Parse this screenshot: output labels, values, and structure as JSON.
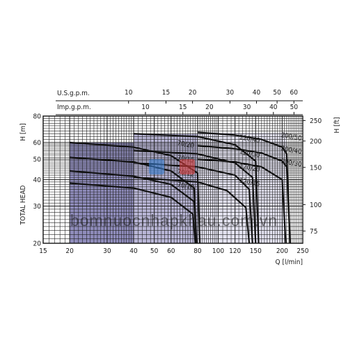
{
  "chart_data": {
    "type": "line",
    "xlabel": "Q [l/min]",
    "ylabel_left": "H [m]",
    "ylabel_left_side": "TOTAL HEAD",
    "ylabel_right": "H [ft]",
    "x_scale": "log",
    "y_scale": "log",
    "xlim": [
      15,
      250
    ],
    "ylim": [
      20,
      80
    ],
    "x_ticks": [
      15,
      20,
      30,
      40,
      50,
      60,
      80,
      100,
      120,
      150,
      200,
      250
    ],
    "y_ticks_left": [
      20,
      30,
      40,
      50,
      60,
      80
    ],
    "y_ticks_right": [
      75,
      100,
      150,
      200,
      250
    ],
    "top_axes": [
      {
        "label": "U.S.g.p.m.",
        "ticks": [
          10,
          15,
          20,
          30,
          40,
          50,
          60
        ]
      },
      {
        "label": "Imp.g.p.m.",
        "ticks": [
          10,
          15,
          20,
          30,
          40,
          50
        ]
      }
    ],
    "grid": true,
    "series": [
      {
        "name": "70/20",
        "x": [
          20,
          40,
          60,
          80
        ],
        "y": [
          60,
          57,
          52,
          43
        ]
      },
      {
        "name": "70/15",
        "x": [
          20,
          40,
          60,
          77
        ],
        "y": [
          51,
          48.5,
          44,
          36.5
        ]
      },
      {
        "name": "70/12",
        "x": [
          20,
          40,
          60,
          77
        ],
        "y": [
          44,
          41.5,
          38,
          31.5
        ]
      },
      {
        "name": "70/10",
        "x": [
          20,
          40,
          60,
          76
        ],
        "y": [
          38.5,
          36.5,
          33,
          27.5
        ]
      },
      {
        "name": "120/40",
        "x": [
          40,
          80,
          120,
          150
        ],
        "y": [
          66,
          64,
          58.5,
          49
        ]
      },
      {
        "name": "120/30",
        "x": [
          40,
          80,
          120,
          145
        ],
        "y": [
          55,
          53,
          48,
          41
        ]
      },
      {
        "name": "120/20",
        "x": [
          40,
          80,
          120,
          140
        ],
        "y": [
          48,
          46,
          42,
          36
        ]
      },
      {
        "name": "120/15",
        "x": [
          40,
          80,
          110,
          135
        ],
        "y": [
          41,
          39,
          35.5,
          29.5
        ]
      },
      {
        "name": "200/50",
        "x": [
          80,
          120,
          160,
          200,
          210
        ],
        "y": [
          67,
          65,
          62,
          57,
          53
        ]
      },
      {
        "name": "200/40",
        "x": [
          80,
          120,
          160,
          200,
          210
        ],
        "y": [
          58,
          56,
          53.5,
          49,
          46
        ]
      },
      {
        "name": "200/30",
        "x": [
          80,
          120,
          160,
          200
        ],
        "y": [
          50,
          48.5,
          46,
          40
        ]
      }
    ]
  },
  "watermark": "bomnuocnhapkhau.com.vn",
  "colors": {
    "fill_light": "#e4e3f1",
    "fill_mid": "#b8b6d6",
    "fill_dark": "#8f8cbb",
    "curve": "#111111",
    "watermark": "#4f94d4"
  }
}
